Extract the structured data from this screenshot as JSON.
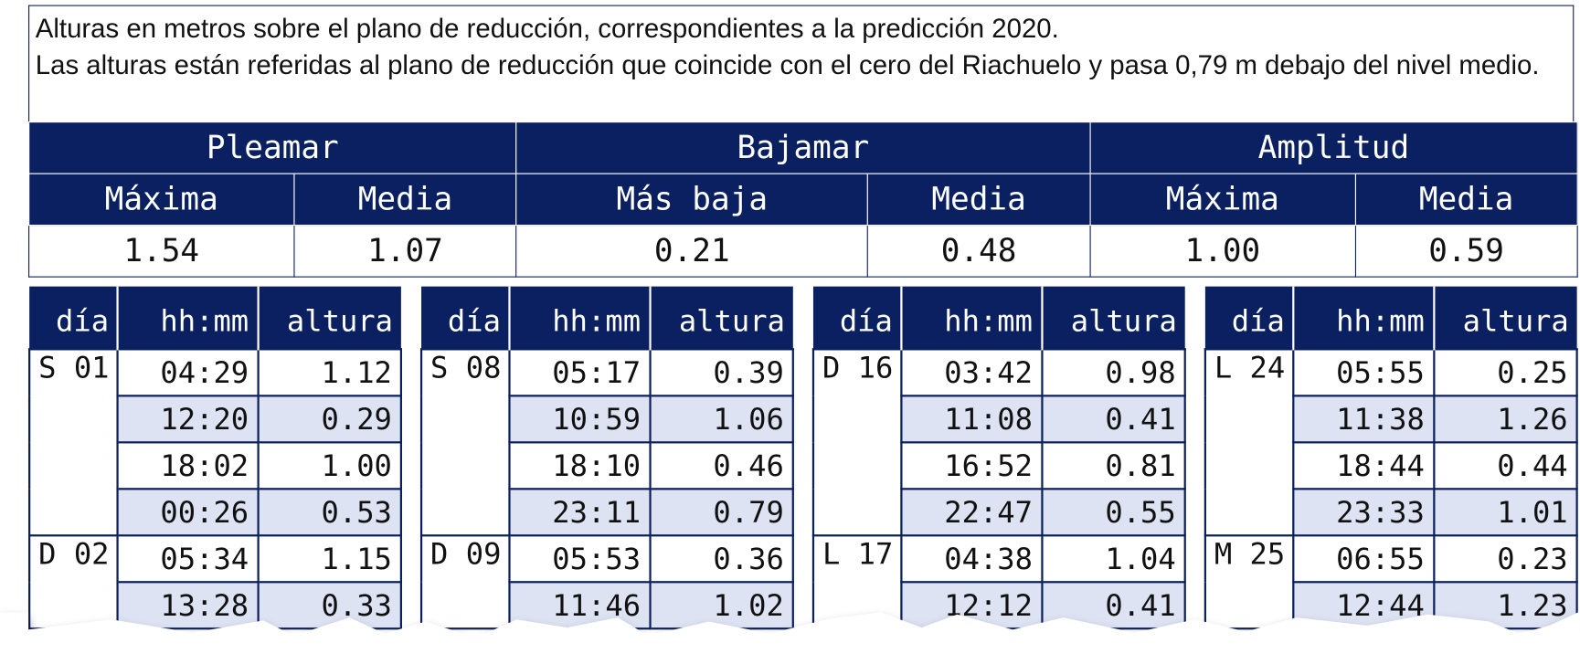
{
  "note": {
    "line1": "Alturas en metros sobre el plano de reducción, correspondientes a la predicción 2020.",
    "line2": "Las alturas están referidas al plano de reducción que coincide con el cero del Riachuelo y pasa 0,79 m debajo del nivel medio."
  },
  "summary": {
    "groups": [
      {
        "title": "Pleamar",
        "columns": [
          "Máxima",
          "Media"
        ],
        "values": [
          "1.54",
          "1.07"
        ]
      },
      {
        "title": "Bajamar",
        "columns": [
          "Más baja",
          "Media"
        ],
        "values": [
          "0.21",
          "0.48"
        ]
      },
      {
        "title": "Amplitud",
        "columns": [
          "Máxima",
          "Media"
        ],
        "values": [
          "1.00",
          "0.59"
        ]
      }
    ]
  },
  "blocks": {
    "header": [
      "día",
      "hh:mm",
      "altura"
    ],
    "tables": [
      {
        "days": [
          {
            "day": "S 01",
            "rows": [
              [
                "04:29",
                "1.12"
              ],
              [
                "12:20",
                "0.29"
              ],
              [
                "18:02",
                "1.00"
              ],
              [
                "00:26",
                "0.53"
              ]
            ]
          },
          {
            "day": "D 02",
            "rows": [
              [
                "05:34",
                "1.15"
              ],
              [
                "13:28",
                "0.33"
              ]
            ]
          }
        ]
      },
      {
        "days": [
          {
            "day": "S 08",
            "rows": [
              [
                "05:17",
                "0.39"
              ],
              [
                "10:59",
                "1.06"
              ],
              [
                "18:10",
                "0.46"
              ],
              [
                "23:11",
                "0.79"
              ]
            ]
          },
          {
            "day": "D 09",
            "rows": [
              [
                "05:53",
                "0.36"
              ],
              [
                "11:46",
                "1.02"
              ]
            ]
          }
        ]
      },
      {
        "days": [
          {
            "day": "D 16",
            "rows": [
              [
                "03:42",
                "0.98"
              ],
              [
                "11:08",
                "0.41"
              ],
              [
                "16:52",
                "0.81"
              ],
              [
                "22:47",
                "0.55"
              ]
            ]
          },
          {
            "day": "L 17",
            "rows": [
              [
                "04:38",
                "1.04"
              ],
              [
                "12:12",
                "0.41"
              ]
            ]
          }
        ]
      },
      {
        "days": [
          {
            "day": "L 24",
            "rows": [
              [
                "05:55",
                "0.25"
              ],
              [
                "11:38",
                "1.26"
              ],
              [
                "18:44",
                "0.44"
              ],
              [
                "23:33",
                "1.01"
              ]
            ]
          },
          {
            "day": "M 25",
            "rows": [
              [
                "06:55",
                "0.23"
              ],
              [
                "12:44",
                "1.23"
              ]
            ]
          }
        ]
      }
    ]
  }
}
